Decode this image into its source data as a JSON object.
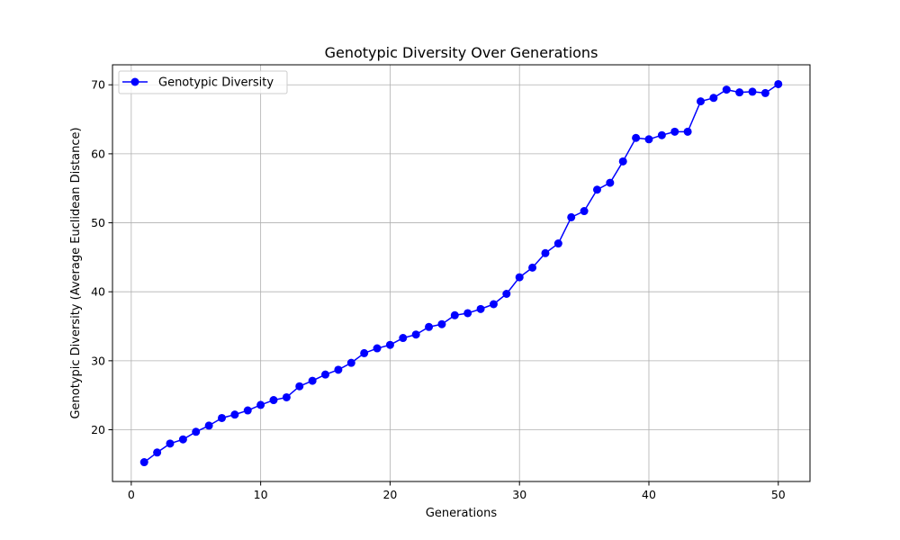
{
  "chart_data": {
    "type": "line",
    "title": "Genotypic Diversity Over Generations",
    "xlabel": "Generations",
    "ylabel": "Genotypic Diversity (Average Euclidean Distance)",
    "xlim": [
      -1.45,
      52.45
    ],
    "ylim": [
      12.5,
      72.9
    ],
    "xticks": [
      0,
      10,
      20,
      30,
      40,
      50
    ],
    "yticks": [
      20,
      30,
      40,
      50,
      60,
      70
    ],
    "grid": true,
    "legend": {
      "position": "upper left"
    },
    "series": [
      {
        "name": "Genotypic Diversity",
        "color": "#0000ff",
        "marker": "circle",
        "x": [
          1,
          2,
          3,
          4,
          5,
          6,
          7,
          8,
          9,
          10,
          11,
          12,
          13,
          14,
          15,
          16,
          17,
          18,
          19,
          20,
          21,
          22,
          23,
          24,
          25,
          26,
          27,
          28,
          29,
          30,
          31,
          32,
          33,
          34,
          35,
          36,
          37,
          38,
          39,
          40,
          41,
          42,
          43,
          44,
          45,
          46,
          47,
          48,
          49,
          50
        ],
        "y": [
          15.3,
          16.7,
          18.0,
          18.6,
          19.7,
          20.6,
          21.7,
          22.2,
          22.8,
          23.6,
          24.3,
          24.7,
          26.3,
          27.1,
          28.0,
          28.7,
          29.7,
          31.1,
          31.8,
          32.3,
          33.3,
          33.8,
          34.9,
          35.3,
          36.6,
          36.9,
          37.5,
          38.2,
          39.7,
          42.1,
          43.5,
          45.6,
          47.0,
          50.8,
          51.7,
          54.8,
          55.8,
          58.9,
          62.3,
          62.1,
          62.7,
          63.2,
          63.2,
          67.6,
          68.1,
          69.3,
          68.9,
          69.0,
          68.8,
          70.1
        ]
      }
    ]
  },
  "colors": {
    "line": "#0000ff",
    "grid": "#b0b0b0",
    "axes": "#000000",
    "background": "#ffffff"
  }
}
